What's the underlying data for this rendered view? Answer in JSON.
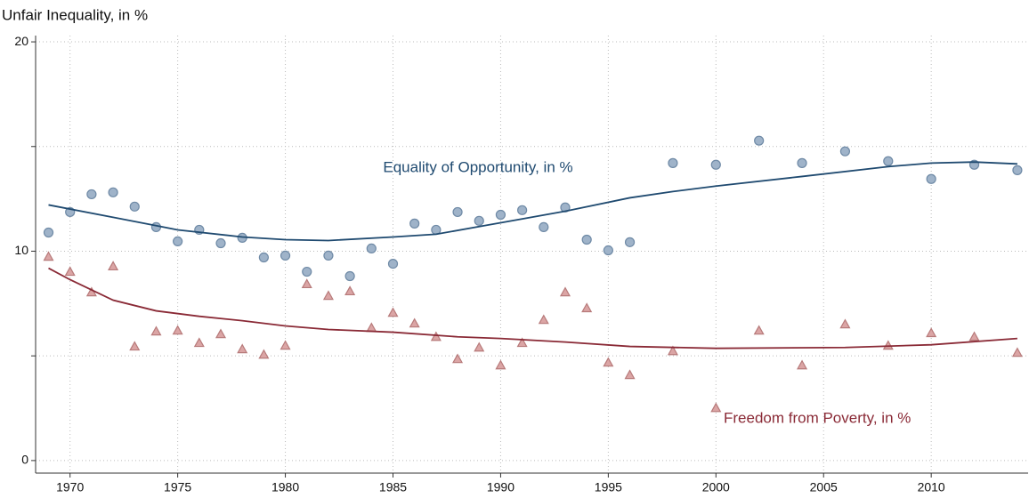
{
  "chart_data": {
    "type": "scatter",
    "ylabel": "Unfair Inequality, in %",
    "xlim": [
      1968.4,
      2014.5
    ],
    "xticks": [
      1970,
      1975,
      1980,
      1985,
      1990,
      1995,
      2000,
      2005,
      2010
    ],
    "ylim": [
      -0.6,
      20.3
    ],
    "yticks": [
      0,
      10,
      20
    ],
    "yticks_minor": [
      5,
      15
    ],
    "grid": true,
    "series": [
      {
        "style": "marker",
        "marker": "circle",
        "color": "#9fb3c9",
        "edge": "#6f8aa6",
        "x": [
          1969,
          1970,
          1971,
          1972,
          1973,
          1974,
          1975,
          1976,
          1977,
          1978,
          1979,
          1980,
          1981,
          1982,
          1983,
          1984,
          1985,
          1986,
          1987,
          1988,
          1989,
          1990,
          1991,
          1992,
          1993,
          1994,
          1995,
          1996,
          1998,
          2000,
          2002,
          2004,
          2006,
          2008,
          2010,
          2012,
          2014
        ],
        "values": [
          10.89,
          11.87,
          12.72,
          12.81,
          12.13,
          11.15,
          10.47,
          11.02,
          10.38,
          10.64,
          9.7,
          9.79,
          9.02,
          9.79,
          8.81,
          10.13,
          9.4,
          11.32,
          11.02,
          11.87,
          11.45,
          11.74,
          11.96,
          11.15,
          12.09,
          10.55,
          10.04,
          10.43,
          14.21,
          14.13,
          15.28,
          14.21,
          14.77,
          14.3,
          13.45,
          14.13,
          13.87
        ]
      },
      {
        "style": "marker",
        "marker": "triangle",
        "color": "#dba5a5",
        "edge": "#b77a7a",
        "x": [
          1969,
          1970,
          1971,
          1972,
          1973,
          1974,
          1975,
          1976,
          1977,
          1978,
          1979,
          1980,
          1981,
          1982,
          1983,
          1984,
          1985,
          1986,
          1987,
          1988,
          1989,
          1990,
          1991,
          1992,
          1993,
          1994,
          1995,
          1996,
          1998,
          2000,
          2002,
          2004,
          2006,
          2008,
          2010,
          2012,
          2014
        ],
        "values": [
          9.74,
          9.02,
          8.04,
          9.28,
          5.45,
          6.17,
          6.21,
          5.62,
          6.04,
          5.32,
          5.06,
          5.49,
          8.43,
          7.87,
          8.09,
          6.34,
          7.06,
          6.55,
          5.91,
          4.85,
          5.4,
          4.55,
          5.62,
          6.72,
          8.04,
          7.28,
          4.68,
          4.09,
          5.23,
          2.51,
          6.21,
          4.55,
          6.51,
          5.49,
          6.09,
          5.91,
          5.15
        ]
      },
      {
        "style": "line",
        "name": "Equality of Opportunity, in %",
        "color": "#1f4a70",
        "x": [
          1969,
          1972,
          1975,
          1978,
          1980,
          1982,
          1985,
          1987,
          1990,
          1993,
          1996,
          1998,
          2000,
          2004,
          2008,
          2010,
          2012,
          2014
        ],
        "values": [
          12.21,
          11.62,
          11.02,
          10.68,
          10.55,
          10.51,
          10.68,
          10.81,
          11.36,
          11.91,
          12.55,
          12.85,
          13.11,
          13.57,
          14.04,
          14.21,
          14.26,
          14.17
        ]
      },
      {
        "style": "line",
        "name": "Freedom from Poverty, in %",
        "color": "#8a2a36",
        "x": [
          1969,
          1970,
          1972,
          1974,
          1976,
          1978,
          1980,
          1982,
          1985,
          1988,
          1990,
          1993,
          1996,
          2000,
          2006,
          2010,
          2014
        ],
        "values": [
          9.19,
          8.64,
          7.66,
          7.15,
          6.89,
          6.68,
          6.43,
          6.26,
          6.13,
          5.91,
          5.83,
          5.66,
          5.45,
          5.36,
          5.4,
          5.53,
          5.83
        ]
      }
    ]
  }
}
